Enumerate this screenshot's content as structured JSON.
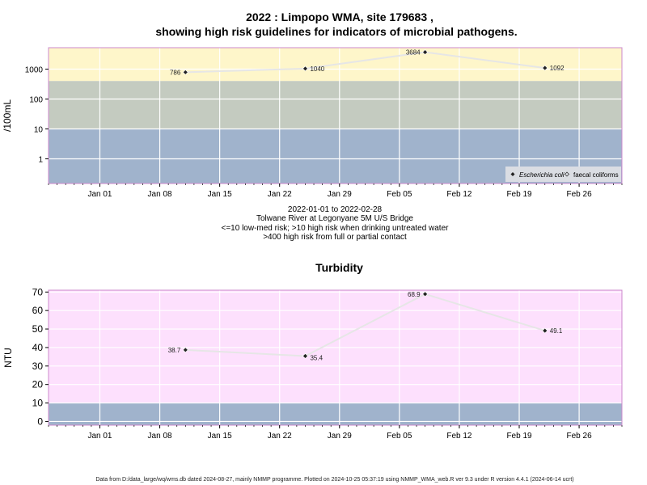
{
  "header": {
    "title_line1": "2022 : Limpopo WMA, site 179683 ,",
    "title_line2": "showing high risk guidelines for indicators of microbial pathogens."
  },
  "subtitle": {
    "line1": "2022-01-01 to 2022-02-28",
    "line2": "Tolwane River at Legonyane 5M U/S Bridge",
    "line3": "<=10 low-med risk; >10 high risk when drinking untreated water",
    "line4": ">400 high risk from full or partial contact"
  },
  "footer": {
    "text": "Data from D:/data_large/wq/wms.db dated 2024-08-27, mainly NMMP programme. Plotted on 2024-10-25 05:37:19 using NMMP_WMA_web.R ver 9.3 under R version 4.4.1 (2024-06-14 ucrt)"
  },
  "colors": {
    "band_high": "#fef6ca",
    "band_mid": "#c4cbc0",
    "band_low": "#a0b3cc",
    "band_turbidity": "#fde0fd",
    "band_turbidity_low": "#a0b3cc",
    "frame": "#cc88cc",
    "line": "#e6e6e6",
    "marker": "#222222"
  },
  "chart_data": [
    {
      "type": "line",
      "ylabel": "/100mL",
      "y_scale": "log",
      "ylim": [
        0.15,
        5200
      ],
      "y_ticks": [
        1,
        10,
        100,
        1000
      ],
      "y_tick_labels": [
        "1",
        "10",
        "100",
        "1000"
      ],
      "xlim": [
        "2021-12-26",
        "2022-03-03"
      ],
      "x_ticks": [
        "2022-01-01",
        "2022-01-08",
        "2022-01-15",
        "2022-01-22",
        "2022-01-29",
        "2022-02-05",
        "2022-02-12",
        "2022-02-19",
        "2022-02-26"
      ],
      "x_tick_labels": [
        "Jan 01",
        "Jan 08",
        "Jan 15",
        "Jan 22",
        "Jan 29",
        "Feb 05",
        "Feb 12",
        "Feb 19",
        "Feb 26"
      ],
      "bands": [
        {
          "from": 400,
          "to": 5200,
          "color_key": "band_high"
        },
        {
          "from": 10,
          "to": 400,
          "color_key": "band_mid"
        },
        {
          "from": 0.15,
          "to": 10,
          "color_key": "band_low"
        }
      ],
      "grid": true,
      "legend_position": "bottom-right",
      "legend": [
        "Escherichia coli",
        "faecal coliforms"
      ],
      "series": [
        {
          "name": "Escherichia coli",
          "x": [
            "2022-01-11",
            "2022-01-25",
            "2022-02-08",
            "2022-02-22"
          ],
          "y": [
            786,
            1040,
            3684,
            1092
          ],
          "labels": [
            "786",
            "1040",
            "3684",
            "1092"
          ]
        }
      ]
    },
    {
      "type": "line",
      "title": "Turbidity",
      "ylabel": "NTU",
      "y_scale": "linear",
      "ylim": [
        -2,
        71
      ],
      "y_ticks": [
        0,
        10,
        20,
        30,
        40,
        50,
        60,
        70
      ],
      "y_tick_labels": [
        "0",
        "10",
        "20",
        "30",
        "40",
        "50",
        "60",
        "70"
      ],
      "xlim": [
        "2021-12-26",
        "2022-03-03"
      ],
      "x_ticks": [
        "2022-01-01",
        "2022-01-08",
        "2022-01-15",
        "2022-01-22",
        "2022-01-29",
        "2022-02-05",
        "2022-02-12",
        "2022-02-19",
        "2022-02-26"
      ],
      "x_tick_labels": [
        "Jan 01",
        "Jan 08",
        "Jan 15",
        "Jan 22",
        "Jan 29",
        "Feb 05",
        "Feb 12",
        "Feb 19",
        "Feb 26"
      ],
      "bands": [
        {
          "from": 10,
          "to": 71,
          "color_key": "band_turbidity"
        },
        {
          "from": -2,
          "to": 10,
          "color_key": "band_turbidity_low"
        }
      ],
      "grid": true,
      "series": [
        {
          "name": "",
          "x": [
            "2022-01-11",
            "2022-01-25",
            "2022-02-08",
            "2022-02-22"
          ],
          "y": [
            38.7,
            35.4,
            68.9,
            49.1
          ],
          "labels": [
            "38.7",
            "35.4",
            "68.9",
            "49.1"
          ]
        }
      ]
    }
  ]
}
